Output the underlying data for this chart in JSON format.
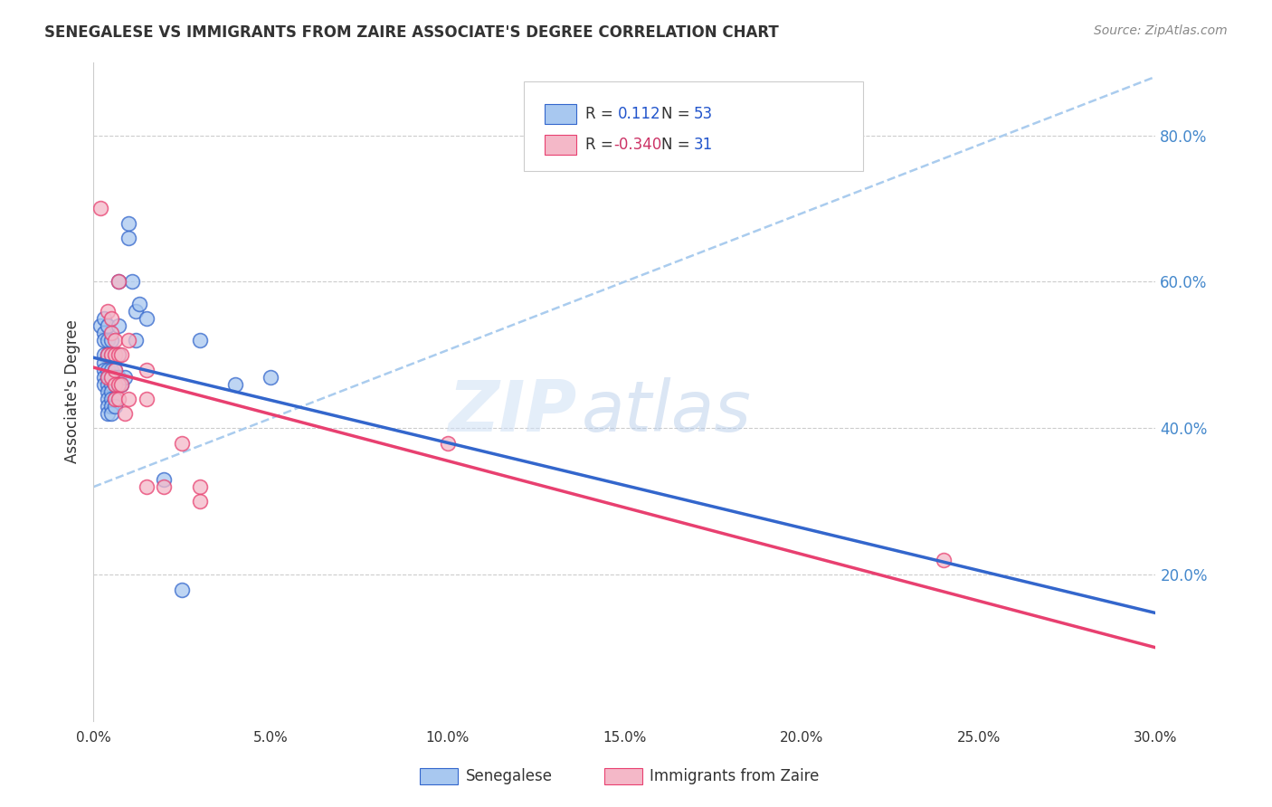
{
  "title": "SENEGALESE VS IMMIGRANTS FROM ZAIRE ASSOCIATE'S DEGREE CORRELATION CHART",
  "source": "Source: ZipAtlas.com",
  "ylabel": "Associate's Degree",
  "legend_label1": "Senegalese",
  "legend_label2": "Immigrants from Zaire",
  "R1": 0.112,
  "N1": 53,
  "R2": -0.34,
  "N2": 31,
  "xlim": [
    0.0,
    0.3
  ],
  "ylim": [
    0.0,
    0.9
  ],
  "xticks": [
    0.0,
    0.05,
    0.1,
    0.15,
    0.2,
    0.25,
    0.3
  ],
  "yticks_right": [
    0.2,
    0.4,
    0.6,
    0.8
  ],
  "color_blue": "#a8c8f0",
  "color_pink": "#f4b8c8",
  "trendline_blue_color": "#3366cc",
  "trendline_pink_color": "#e84070",
  "dashed_line_color": "#aaccee",
  "blue_scatter": [
    [
      0.002,
      0.54
    ],
    [
      0.003,
      0.55
    ],
    [
      0.003,
      0.53
    ],
    [
      0.003,
      0.52
    ],
    [
      0.003,
      0.5
    ],
    [
      0.003,
      0.49
    ],
    [
      0.003,
      0.48
    ],
    [
      0.003,
      0.47
    ],
    [
      0.003,
      0.46
    ],
    [
      0.004,
      0.54
    ],
    [
      0.004,
      0.52
    ],
    [
      0.004,
      0.5
    ],
    [
      0.004,
      0.48
    ],
    [
      0.004,
      0.47
    ],
    [
      0.004,
      0.46
    ],
    [
      0.004,
      0.45
    ],
    [
      0.004,
      0.44
    ],
    [
      0.004,
      0.43
    ],
    [
      0.004,
      0.42
    ],
    [
      0.005,
      0.52
    ],
    [
      0.005,
      0.5
    ],
    [
      0.005,
      0.48
    ],
    [
      0.005,
      0.47
    ],
    [
      0.005,
      0.46
    ],
    [
      0.005,
      0.45
    ],
    [
      0.005,
      0.44
    ],
    [
      0.005,
      0.43
    ],
    [
      0.005,
      0.42
    ],
    [
      0.006,
      0.5
    ],
    [
      0.006,
      0.48
    ],
    [
      0.006,
      0.47
    ],
    [
      0.006,
      0.46
    ],
    [
      0.006,
      0.44
    ],
    [
      0.006,
      0.43
    ],
    [
      0.007,
      0.6
    ],
    [
      0.007,
      0.54
    ],
    [
      0.007,
      0.5
    ],
    [
      0.007,
      0.47
    ],
    [
      0.007,
      0.46
    ],
    [
      0.008,
      0.46
    ],
    [
      0.009,
      0.47
    ],
    [
      0.01,
      0.68
    ],
    [
      0.01,
      0.66
    ],
    [
      0.011,
      0.6
    ],
    [
      0.012,
      0.56
    ],
    [
      0.012,
      0.52
    ],
    [
      0.013,
      0.57
    ],
    [
      0.015,
      0.55
    ],
    [
      0.02,
      0.33
    ],
    [
      0.025,
      0.18
    ],
    [
      0.03,
      0.52
    ],
    [
      0.04,
      0.46
    ],
    [
      0.05,
      0.47
    ]
  ],
  "pink_scatter": [
    [
      0.002,
      0.7
    ],
    [
      0.004,
      0.56
    ],
    [
      0.004,
      0.5
    ],
    [
      0.004,
      0.47
    ],
    [
      0.005,
      0.55
    ],
    [
      0.005,
      0.53
    ],
    [
      0.005,
      0.5
    ],
    [
      0.005,
      0.47
    ],
    [
      0.006,
      0.52
    ],
    [
      0.006,
      0.5
    ],
    [
      0.006,
      0.48
    ],
    [
      0.006,
      0.46
    ],
    [
      0.006,
      0.44
    ],
    [
      0.007,
      0.6
    ],
    [
      0.007,
      0.5
    ],
    [
      0.007,
      0.46
    ],
    [
      0.007,
      0.44
    ],
    [
      0.008,
      0.5
    ],
    [
      0.008,
      0.46
    ],
    [
      0.009,
      0.42
    ],
    [
      0.01,
      0.52
    ],
    [
      0.01,
      0.44
    ],
    [
      0.015,
      0.48
    ],
    [
      0.015,
      0.44
    ],
    [
      0.015,
      0.32
    ],
    [
      0.02,
      0.32
    ],
    [
      0.025,
      0.38
    ],
    [
      0.03,
      0.32
    ],
    [
      0.03,
      0.3
    ],
    [
      0.24,
      0.22
    ],
    [
      0.1,
      0.38
    ]
  ],
  "watermark_zip": "ZIP",
  "watermark_atlas": "atlas",
  "background_color": "#ffffff",
  "grid_color": "#cccccc"
}
